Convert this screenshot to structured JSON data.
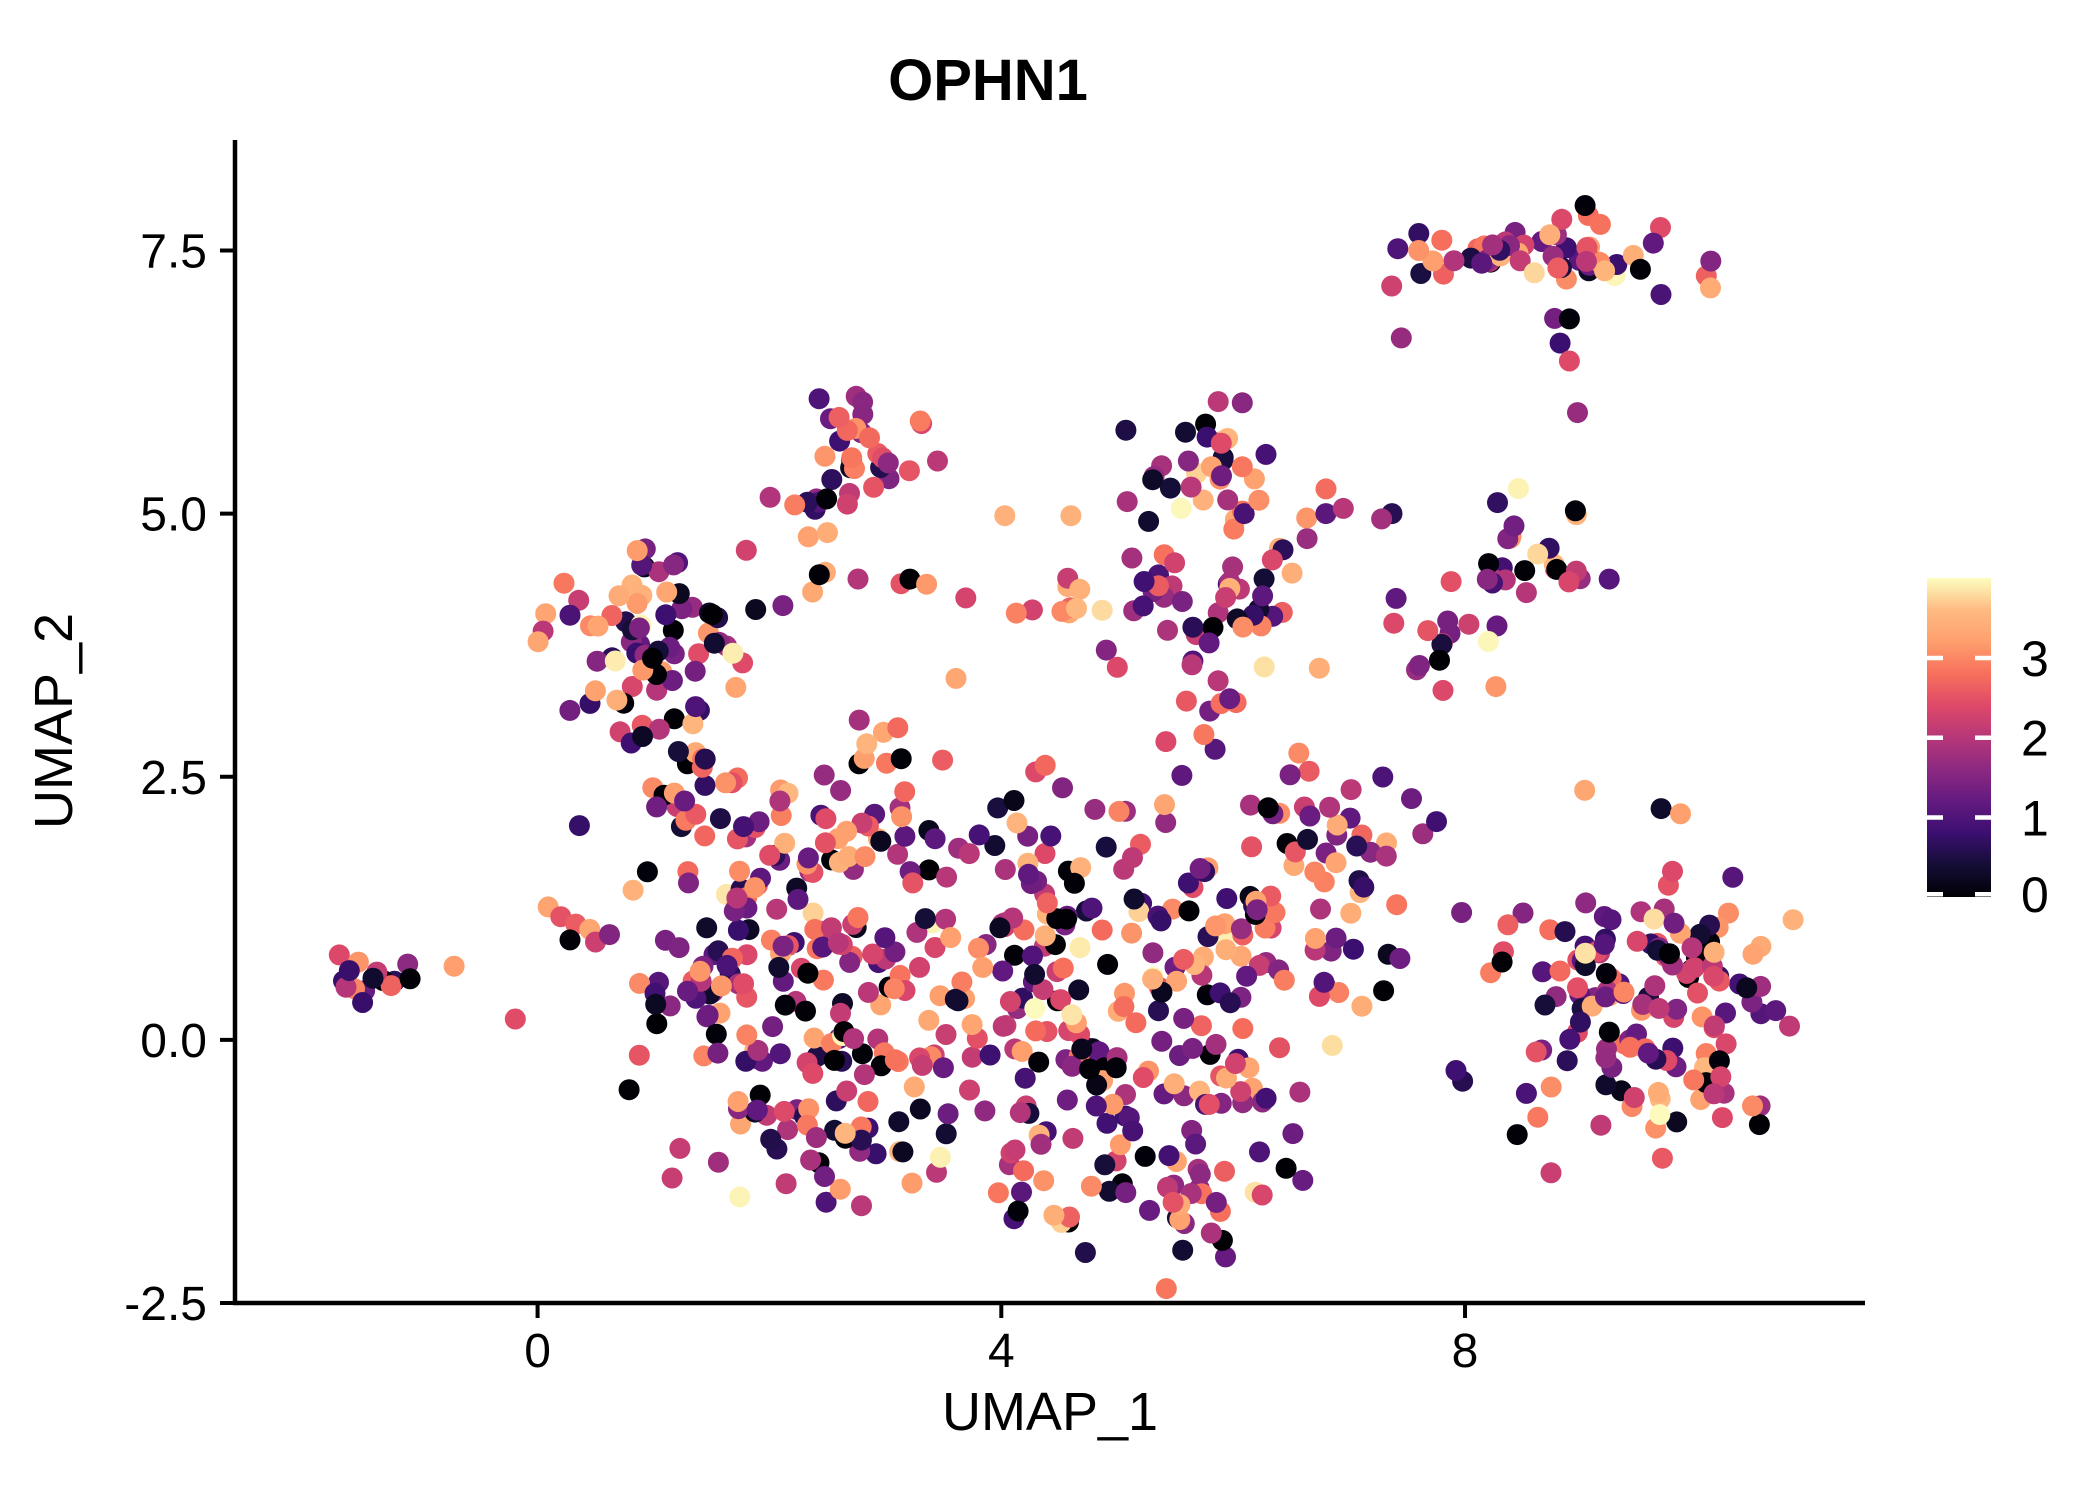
{
  "title": "OPHN1",
  "axes": {
    "x": {
      "label": "UMAP_1",
      "ticks": [
        {
          "v": 0,
          "label": "0"
        },
        {
          "v": 4,
          "label": "4"
        },
        {
          "v": 8,
          "label": "8"
        }
      ],
      "range": [
        -2.61,
        11.45
      ]
    },
    "y": {
      "label": "UMAP_2",
      "ticks": [
        {
          "v": 7.5,
          "label": "7.5"
        },
        {
          "v": 5.0,
          "label": "5.0"
        },
        {
          "v": 2.5,
          "label": "2.5"
        },
        {
          "v": 0.0,
          "label": "0.0"
        },
        {
          "v": -2.5,
          "label": "-2.5"
        }
      ],
      "range": [
        -2.5,
        8.55
      ]
    }
  },
  "legend": {
    "ticks": [
      {
        "v": 3,
        "label": "3"
      },
      {
        "v": 2,
        "label": "2"
      },
      {
        "v": 1,
        "label": "1"
      },
      {
        "v": 0,
        "label": "0"
      }
    ],
    "domain": [
      0,
      4
    ]
  },
  "chart_data": {
    "type": "scatter",
    "title": "OPHN1",
    "xlabel": "UMAP_1",
    "ylabel": "UMAP_2",
    "xlim": [
      -2.61,
      11.45
    ],
    "ylim": [
      -2.5,
      8.55
    ],
    "grid": false,
    "legend_position": "right",
    "color_variable": "expression",
    "color_domain": [
      0,
      4
    ],
    "point_radius_px": 10.5,
    "seed": 20240607,
    "color_scale": {
      "name": "magma",
      "stops": [
        {
          "t": 0.0,
          "c": "#000004"
        },
        {
          "t": 0.1,
          "c": "#140e36"
        },
        {
          "t": 0.2,
          "c": "#3b0f70"
        },
        {
          "t": 0.3,
          "c": "#641a80"
        },
        {
          "t": 0.4,
          "c": "#8c2981"
        },
        {
          "t": 0.5,
          "c": "#b73779"
        },
        {
          "t": 0.6,
          "c": "#de4968"
        },
        {
          "t": 0.7,
          "c": "#f7705c"
        },
        {
          "t": 0.8,
          "c": "#fe9f6d"
        },
        {
          "t": 0.9,
          "c": "#febb81"
        },
        {
          "t": 1.0,
          "c": "#fcfdbf"
        }
      ]
    },
    "clusters": [
      {
        "name": "far-left-blob",
        "cx": -1.55,
        "cy": 0.62,
        "sx": 0.16,
        "sy": 0.12,
        "n": 13
      },
      {
        "name": "left-main",
        "cx": 1.05,
        "cy": 3.68,
        "sx": 0.42,
        "sy": 0.5,
        "n": 72
      },
      {
        "name": "left-top-knob",
        "cx": 1.0,
        "cy": 4.55,
        "sx": 0.18,
        "sy": 0.1,
        "n": 5
      },
      {
        "name": "upper-left-main",
        "cx": 2.75,
        "cy": 5.55,
        "sx": 0.3,
        "sy": 0.3,
        "n": 30
      },
      {
        "name": "upper-left-arc",
        "cx": 2.45,
        "cy": 5.12,
        "sx": 0.12,
        "sy": 0.18,
        "n": 6
      },
      {
        "name": "bridge-row",
        "cx": 3.0,
        "cy": 4.33,
        "sx": 0.45,
        "sy": 0.09,
        "n": 8
      },
      {
        "name": "bridge-clump",
        "cx": 4.5,
        "cy": 4.2,
        "sx": 0.3,
        "sy": 0.15,
        "n": 9,
        "vmin": 1.6
      },
      {
        "name": "midtop-main",
        "cx": 5.95,
        "cy": 5.15,
        "sx": 0.42,
        "sy": 0.46,
        "n": 55
      },
      {
        "name": "midtop-lower",
        "cx": 5.8,
        "cy": 4.05,
        "sx": 0.4,
        "sy": 0.4,
        "n": 28
      },
      {
        "name": "midtop-bridge",
        "cx": 5.8,
        "cy": 3.1,
        "sx": 0.5,
        "sy": 0.22,
        "n": 8
      },
      {
        "name": "rightmid-upper",
        "cx": 8.55,
        "cy": 4.55,
        "sx": 0.3,
        "sy": 0.3,
        "n": 26
      },
      {
        "name": "rightmid-lower",
        "cx": 7.95,
        "cy": 3.75,
        "sx": 0.25,
        "sy": 0.26,
        "n": 16
      },
      {
        "name": "topright-band",
        "cx": 8.75,
        "cy": 7.45,
        "sx": 0.6,
        "sy": 0.2,
        "n": 58
      },
      {
        "name": "farright-main",
        "cx": 9.55,
        "cy": 0.35,
        "sx": 0.58,
        "sy": 0.7,
        "n": 130
      },
      {
        "name": "farright-east",
        "cx": 10.35,
        "cy": 0.1,
        "sx": 0.25,
        "sy": 0.45,
        "n": 14
      },
      {
        "name": "central-left",
        "cx": 1.9,
        "cy": 1.35,
        "sx": 0.5,
        "sy": 0.7,
        "n": 65
      },
      {
        "name": "central-lowleft",
        "cx": 1.35,
        "cy": 0.35,
        "sx": 0.4,
        "sy": 0.5,
        "n": 40
      },
      {
        "name": "central-c",
        "cx": 2.6,
        "cy": 0.3,
        "sx": 0.55,
        "sy": 0.85,
        "n": 55
      },
      {
        "name": "central-d",
        "cx": 3.6,
        "cy": 0.0,
        "sx": 0.65,
        "sy": 0.85,
        "n": 60
      },
      {
        "name": "central-e",
        "cx": 4.6,
        "cy": 0.3,
        "sx": 0.75,
        "sy": 0.95,
        "n": 75
      },
      {
        "name": "central-f",
        "cx": 5.6,
        "cy": 0.1,
        "sx": 0.65,
        "sy": 0.85,
        "n": 70
      },
      {
        "name": "central-g",
        "cx": 6.3,
        "cy": 1.0,
        "sx": 0.55,
        "sy": 0.75,
        "n": 50
      },
      {
        "name": "central-h",
        "cx": 6.9,
        "cy": 1.9,
        "sx": 0.4,
        "sy": 0.45,
        "n": 26
      },
      {
        "name": "central-tail",
        "cx": 5.2,
        "cy": -1.5,
        "sx": 0.6,
        "sy": 0.33,
        "n": 36
      },
      {
        "name": "central-topbump",
        "cx": 3.0,
        "cy": 2.3,
        "sx": 0.45,
        "sy": 0.4,
        "n": 22
      },
      {
        "name": "central-mid",
        "cx": 4.3,
        "cy": 1.6,
        "sx": 0.55,
        "sy": 0.55,
        "n": 32
      },
      {
        "name": "central-lowmid",
        "cx": 2.2,
        "cy": -0.75,
        "sx": 0.45,
        "sy": 0.5,
        "n": 32
      },
      {
        "name": "left-column",
        "cx": 1.35,
        "cy": 2.45,
        "sx": 0.28,
        "sy": 0.3,
        "n": 16
      }
    ],
    "extra_points": [
      [
        -0.72,
        0.7,
        3.2
      ],
      [
        -1.12,
        0.72,
        1.6
      ],
      [
        -1.1,
        0.58,
        0.02
      ],
      [
        4.03,
        4.98,
        3.45
      ],
      [
        4.6,
        4.98,
        3.45
      ],
      [
        0.67,
        3.6,
        3.9
      ],
      [
        2.43,
        4.42,
        0.02
      ],
      [
        3.3,
        5.88,
        2.9
      ],
      [
        3.45,
        5.5,
        2.05
      ],
      [
        6.8,
        5.0,
        1.1
      ],
      [
        6.95,
        5.05,
        2.0
      ],
      [
        7.37,
        5.0,
        0.6
      ],
      [
        7.28,
        4.95,
        1.8
      ],
      [
        7.6,
        7.5,
        3.1
      ],
      [
        7.45,
        6.67,
        1.7
      ],
      [
        8.9,
        6.85,
        0.05
      ],
      [
        8.82,
        6.62,
        0.8
      ],
      [
        8.9,
        6.45,
        2.4
      ],
      [
        8.97,
        5.96,
        1.7
      ],
      [
        9.68,
        -0.71,
        3.98
      ],
      [
        8.45,
        -0.9,
        0.02
      ],
      [
        8.32,
        0.74,
        0.02
      ],
      [
        7.97,
        1.21,
        1.4
      ],
      [
        0.2,
        1.17,
        2.5
      ],
      [
        0.33,
        1.1,
        2.6
      ],
      [
        0.45,
        1.05,
        3.3
      ],
      [
        0.28,
        0.95,
        0.02
      ],
      [
        0.5,
        0.93,
        2.2
      ],
      [
        0.62,
        1.0,
        1.5
      ]
    ]
  }
}
